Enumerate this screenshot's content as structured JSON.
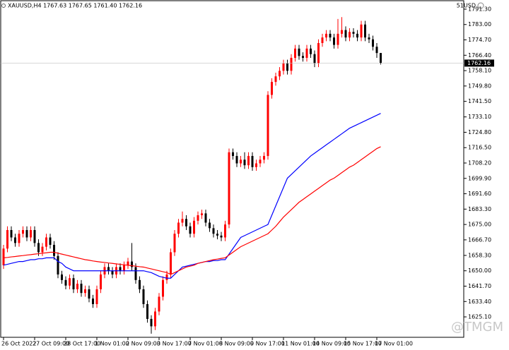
{
  "chart_data": {
    "type": "candlestick",
    "title": "XAUUSD,H4  1767.63 1767.65 1761.40 1762.16",
    "symbol_label": "51USD",
    "watermark": "@TMGM",
    "up_color": "#ff0000",
    "down_color": "#000000",
    "categories": [
      "26 Oct 2022",
      null,
      null,
      null,
      null,
      null,
      null,
      null,
      "27 Oct 09:00",
      null,
      null,
      null,
      null,
      null,
      null,
      null,
      "28 Oct 17:00",
      null,
      null,
      null,
      null,
      null,
      null,
      null,
      "1 Nov 01:00",
      null,
      null,
      null,
      null,
      null,
      null,
      null,
      "2 Nov 09:00",
      null,
      null,
      null,
      null,
      null,
      null,
      null,
      "3 Nov 17:00",
      null,
      null,
      null,
      null,
      null,
      null,
      null,
      "7 Nov 01:00",
      null,
      null,
      null,
      null,
      null,
      null,
      null,
      "8 Nov 09:00",
      null,
      null,
      null,
      null,
      null,
      null,
      null,
      "9 Nov 17:00",
      null,
      null,
      null,
      null,
      null,
      null,
      null,
      "11 Nov 01:00",
      null,
      null,
      null,
      null,
      null,
      null,
      null,
      "14 Nov 09:00",
      null,
      null,
      null,
      null,
      null,
      null,
      null,
      "15 Nov 17:00",
      null,
      null,
      null,
      null,
      null,
      null,
      null,
      "17 Nov 01:00",
      null
    ],
    "open": [
      1653,
      1662,
      1672,
      1668,
      1665,
      1670,
      1672,
      1668,
      1672,
      1665,
      1660,
      1663,
      1668,
      1664,
      1658,
      1648,
      1645,
      1642,
      1646,
      1640,
      1643,
      1638,
      1640,
      1635,
      1632,
      1640,
      1648,
      1652,
      1650,
      1648,
      1652,
      1650,
      1653,
      1655,
      1652,
      1645,
      1640,
      1632,
      1624,
      1620,
      1628,
      1636,
      1645,
      1648,
      1660,
      1670,
      1676,
      1678,
      1674,
      1670,
      1677,
      1680,
      1681,
      1676,
      1673,
      1670,
      1669,
      1668,
      1675,
      1714,
      1712,
      1708,
      1710,
      1707,
      1712,
      1706,
      1708,
      1710,
      1712,
      1745,
      1752,
      1755,
      1758,
      1762,
      1758,
      1765,
      1770,
      1766,
      1765,
      1770,
      1767,
      1762,
      1773,
      1776,
      1778,
      1776,
      1772,
      1778,
      1780,
      1776,
      1779,
      1778,
      1776,
      1783,
      1776,
      1775,
      1771,
      1767.63
    ],
    "high": [
      1664,
      1674,
      1674,
      1670,
      1672,
      1674,
      1674,
      1674,
      1674,
      1667,
      1665,
      1670,
      1670,
      1666,
      1660,
      1650,
      1647,
      1648,
      1648,
      1645,
      1645,
      1642,
      1642,
      1637,
      1642,
      1650,
      1654,
      1654,
      1652,
      1654,
      1654,
      1655,
      1657,
      1665,
      1654,
      1647,
      1642,
      1634,
      1626,
      1630,
      1638,
      1647,
      1650,
      1662,
      1672,
      1678,
      1682,
      1680,
      1676,
      1679,
      1682,
      1683,
      1683,
      1678,
      1675,
      1672,
      1671,
      1677,
      1716,
      1716,
      1714,
      1712,
      1714,
      1714,
      1714,
      1710,
      1712,
      1714,
      1747,
      1754,
      1757,
      1760,
      1764,
      1764,
      1767,
      1772,
      1772,
      1768,
      1772,
      1772,
      1769,
      1775,
      1778,
      1780,
      1780,
      1778,
      1786,
      1787,
      1782,
      1781,
      1781,
      1780,
      1785,
      1785,
      1778,
      1777,
      1773,
      1767.65
    ],
    "low": [
      1651,
      1660,
      1666,
      1663,
      1663,
      1668,
      1666,
      1666,
      1663,
      1658,
      1658,
      1661,
      1662,
      1656,
      1646,
      1643,
      1640,
      1640,
      1638,
      1638,
      1636,
      1636,
      1633,
      1630,
      1630,
      1638,
      1646,
      1648,
      1646,
      1646,
      1648,
      1648,
      1651,
      1650,
      1643,
      1638,
      1630,
      1622,
      1616,
      1618,
      1626,
      1634,
      1643,
      1646,
      1658,
      1668,
      1674,
      1672,
      1668,
      1668,
      1675,
      1678,
      1674,
      1671,
      1668,
      1667,
      1666,
      1666,
      1673,
      1710,
      1706,
      1706,
      1705,
      1705,
      1704,
      1704,
      1706,
      1708,
      1710,
      1743,
      1750,
      1753,
      1756,
      1756,
      1756,
      1763,
      1764,
      1763,
      1763,
      1765,
      1760,
      1760,
      1771,
      1774,
      1774,
      1770,
      1770,
      1776,
      1774,
      1774,
      1776,
      1774,
      1774,
      1774,
      1773,
      1769,
      1765,
      1761.4
    ],
    "close": [
      1662,
      1672,
      1668,
      1665,
      1670,
      1672,
      1668,
      1672,
      1665,
      1660,
      1663,
      1668,
      1664,
      1658,
      1648,
      1645,
      1642,
      1646,
      1640,
      1643,
      1638,
      1640,
      1635,
      1632,
      1640,
      1648,
      1652,
      1650,
      1648,
      1652,
      1650,
      1653,
      1655,
      1652,
      1645,
      1640,
      1632,
      1624,
      1620,
      1628,
      1636,
      1645,
      1648,
      1660,
      1670,
      1676,
      1678,
      1674,
      1670,
      1677,
      1680,
      1681,
      1676,
      1673,
      1670,
      1669,
      1668,
      1675,
      1714,
      1712,
      1708,
      1710,
      1707,
      1712,
      1706,
      1708,
      1710,
      1712,
      1745,
      1752,
      1755,
      1758,
      1762,
      1758,
      1765,
      1770,
      1766,
      1765,
      1770,
      1767,
      1762,
      1773,
      1776,
      1778,
      1776,
      1772,
      1778,
      1780,
      1776,
      1779,
      1778,
      1776,
      1783,
      1776,
      1775,
      1771,
      1767.6,
      1762.16
    ],
    "series": [
      {
        "color": "#0000ff",
        "values": [
          1653,
          1653.5,
          1654,
          1654.5,
          1655,
          1655,
          1655.5,
          1656,
          1656,
          1656.5,
          1656.5,
          1657,
          1657,
          1657,
          1655,
          1654,
          1652,
          1651,
          1650,
          1650,
          1650,
          1650,
          1650,
          1650,
          1650,
          1650,
          1650,
          1650,
          1650,
          1650,
          1650,
          1650,
          1650,
          1650,
          1650,
          1650,
          1650,
          1649.5,
          1649,
          1648,
          1647,
          1646.5,
          1646,
          1646,
          1648,
          1650,
          1652,
          1652.5,
          1653,
          1653.5,
          1654,
          1654.5,
          1655,
          1655,
          1655.5,
          1655.5,
          1656,
          1656,
          1659,
          1662,
          1665,
          1668,
          1669,
          1670,
          1671,
          1672,
          1673,
          1674,
          1675,
          1680,
          1685,
          1690,
          1695,
          1700,
          1702,
          1704,
          1706,
          1708,
          1710,
          1712,
          1713.5,
          1715,
          1716.5,
          1718,
          1719.5,
          1721,
          1722.5,
          1724,
          1725.5,
          1727,
          1728,
          1729,
          1730,
          1731,
          1732,
          1733,
          1734,
          1735
        ]
      },
      {
        "color": "#ff0000",
        "values": [
          1657,
          1657.2,
          1657.5,
          1657.7,
          1658,
          1658.2,
          1658.5,
          1658.7,
          1659,
          1659.2,
          1659.5,
          1659.7,
          1660,
          1660,
          1659.5,
          1659,
          1658.5,
          1658,
          1657.5,
          1657,
          1656.5,
          1656,
          1655.7,
          1655.3,
          1655,
          1654.7,
          1654.5,
          1654.2,
          1654,
          1653.7,
          1653.5,
          1653.2,
          1653,
          1652.7,
          1652.5,
          1652.2,
          1652,
          1651.5,
          1651,
          1650.5,
          1650,
          1649.5,
          1649,
          1648,
          1649,
          1650,
          1651,
          1652,
          1652.5,
          1653,
          1654,
          1654.5,
          1655,
          1655.5,
          1656,
          1656.3,
          1656.7,
          1657,
          1658.5,
          1660,
          1661.5,
          1663,
          1664,
          1665,
          1666,
          1667,
          1668,
          1669,
          1670,
          1672,
          1674,
          1676.5,
          1679,
          1681,
          1683,
          1685,
          1687,
          1688.5,
          1690,
          1691.5,
          1693,
          1694.5,
          1696,
          1697.5,
          1699,
          1700,
          1701.5,
          1703,
          1704.5,
          1706,
          1707,
          1708.5,
          1710,
          1711.5,
          1713,
          1714.5,
          1716,
          1717
        ]
      }
    ],
    "last_price": 1762.16,
    "ylim": [
      1614.07,
      1795.86
    ],
    "yticks": [
      {
        "value": 1791.3,
        "label": "1791.30"
      },
      {
        "value": 1783,
        "label": "1783.00"
      },
      {
        "value": 1774.7,
        "label": "1774.70"
      },
      {
        "value": 1766.4,
        "label": "1766.40"
      },
      {
        "value": 1758.1,
        "label": "1758.10"
      },
      {
        "value": 1749.8,
        "label": "1749.80"
      },
      {
        "value": 1741.5,
        "label": "1741.50"
      },
      {
        "value": 1733.1,
        "label": "1733.10"
      },
      {
        "value": 1724.8,
        "label": "1724.80"
      },
      {
        "value": 1716.5,
        "label": "1716.50"
      },
      {
        "value": 1708.2,
        "label": "1708.20"
      },
      {
        "value": 1699.9,
        "label": "1699.90"
      },
      {
        "value": 1691.6,
        "label": "1691.60"
      },
      {
        "value": 1683.3,
        "label": "1683.30"
      },
      {
        "value": 1675,
        "label": "1675.00"
      },
      {
        "value": 1666.7,
        "label": "1666.70"
      },
      {
        "value": 1658.3,
        "label": "1658.30"
      },
      {
        "value": 1650,
        "label": "1650.00"
      },
      {
        "value": 1641.7,
        "label": "1641.70"
      },
      {
        "value": 1633.4,
        "label": "1633.40"
      },
      {
        "value": 1625.1,
        "label": "1625.10"
      }
    ]
  }
}
